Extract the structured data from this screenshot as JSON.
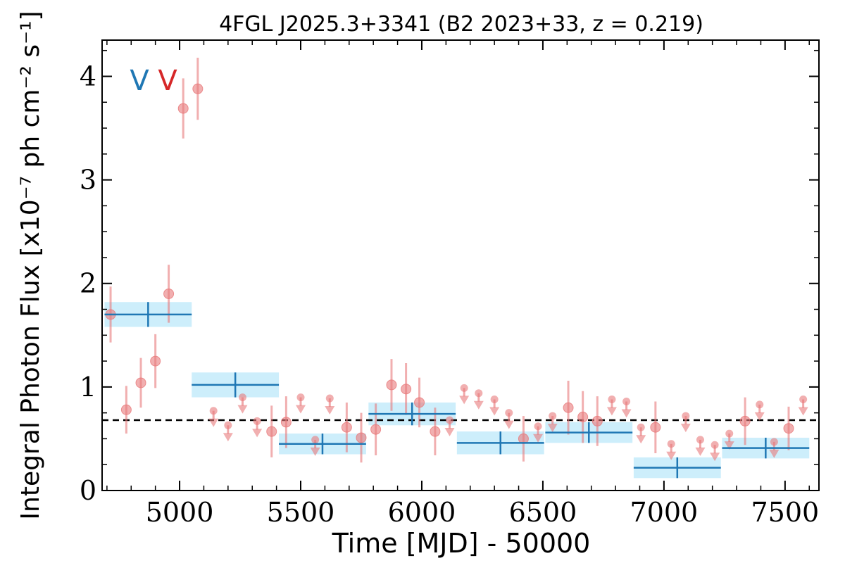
{
  "chart_data": {
    "type": "scatter",
    "title": "4FGL J2025.3+3341 (B2 2023+33, z = 0.219)",
    "xlabel": "Time [MJD] - 50000",
    "ylabel": "Integral Photon Flux [x10⁻⁷ ph cm⁻² s⁻¹]",
    "xlim": [
      4680,
      7640
    ],
    "ylim": [
      0,
      4.35
    ],
    "xticks": [
      5000,
      5500,
      6000,
      6500,
      7000,
      7500
    ],
    "yticks": [
      0,
      1,
      2,
      3,
      4
    ],
    "reference_line": {
      "y": 0.68,
      "style": "dashed",
      "color": "#000000"
    },
    "flags": [
      {
        "text": "V",
        "color": "#1f77b4"
      },
      {
        "text": "V",
        "color": "#d62728"
      }
    ],
    "colors": {
      "binned": "#1f77b4",
      "binned_band": "#cdeefb",
      "short": "#e8797b"
    },
    "binned": [
      {
        "x": 4870,
        "xerr": 180,
        "y": 1.7,
        "yerr": 0.12
      },
      {
        "x": 5230,
        "xerr": 180,
        "y": 1.02,
        "yerr": 0.12
      },
      {
        "x": 5590,
        "xerr": 180,
        "y": 0.45,
        "yerr": 0.1
      },
      {
        "x": 5960,
        "xerr": 180,
        "y": 0.74,
        "yerr": 0.11
      },
      {
        "x": 6325,
        "xerr": 180,
        "y": 0.46,
        "yerr": 0.11
      },
      {
        "x": 6690,
        "xerr": 180,
        "y": 0.56,
        "yerr": 0.1
      },
      {
        "x": 7055,
        "xerr": 180,
        "y": 0.22,
        "yerr": 0.1
      },
      {
        "x": 7420,
        "xerr": 180,
        "y": 0.41,
        "yerr": 0.1
      }
    ],
    "short_bins": [
      {
        "x": 4715,
        "y": 1.7,
        "yerr": 0.27,
        "ul": false
      },
      {
        "x": 4780,
        "y": 0.78,
        "yerr": 0.23,
        "ul": false
      },
      {
        "x": 4840,
        "y": 1.04,
        "yerr": 0.24,
        "ul": false
      },
      {
        "x": 4900,
        "y": 1.25,
        "yerr": 0.26,
        "ul": false
      },
      {
        "x": 4955,
        "y": 1.9,
        "yerr": 0.28,
        "ul": false
      },
      {
        "x": 5015,
        "y": 3.69,
        "yerr": 0.29,
        "ul": false
      },
      {
        "x": 5075,
        "y": 3.88,
        "yerr": 0.3,
        "ul": false
      },
      {
        "x": 5140,
        "y": 0.77,
        "ul": true
      },
      {
        "x": 5200,
        "y": 0.63,
        "ul": true
      },
      {
        "x": 5260,
        "y": 0.9,
        "ul": true
      },
      {
        "x": 5320,
        "y": 0.67,
        "ul": true
      },
      {
        "x": 5380,
        "y": 0.57,
        "yerr": 0.25,
        "ul": false
      },
      {
        "x": 5440,
        "y": 0.66,
        "yerr": 0.25,
        "ul": false
      },
      {
        "x": 5500,
        "y": 0.9,
        "ul": true
      },
      {
        "x": 5560,
        "y": 0.49,
        "ul": true
      },
      {
        "x": 5620,
        "y": 0.89,
        "ul": true
      },
      {
        "x": 5690,
        "y": 0.61,
        "yerr": 0.24,
        "ul": false
      },
      {
        "x": 5750,
        "y": 0.51,
        "yerr": 0.24,
        "ul": false
      },
      {
        "x": 5810,
        "y": 0.59,
        "yerr": 0.25,
        "ul": false
      },
      {
        "x": 5875,
        "y": 1.02,
        "yerr": 0.25,
        "ul": false
      },
      {
        "x": 5935,
        "y": 0.98,
        "yerr": 0.25,
        "ul": false
      },
      {
        "x": 5990,
        "y": 0.85,
        "yerr": 0.24,
        "ul": false
      },
      {
        "x": 6055,
        "y": 0.57,
        "yerr": 0.23,
        "ul": false
      },
      {
        "x": 6115,
        "y": 0.68,
        "ul": true
      },
      {
        "x": 6175,
        "y": 0.99,
        "ul": true
      },
      {
        "x": 6235,
        "y": 0.94,
        "ul": true
      },
      {
        "x": 6300,
        "y": 0.88,
        "ul": true
      },
      {
        "x": 6360,
        "y": 0.75,
        "ul": true
      },
      {
        "x": 6420,
        "y": 0.5,
        "yerr": 0.22,
        "ul": false
      },
      {
        "x": 6480,
        "y": 0.62,
        "ul": true
      },
      {
        "x": 6540,
        "y": 0.72,
        "ul": true
      },
      {
        "x": 6605,
        "y": 0.8,
        "yerr": 0.26,
        "ul": false
      },
      {
        "x": 6665,
        "y": 0.71,
        "yerr": 0.25,
        "ul": false
      },
      {
        "x": 6725,
        "y": 0.67,
        "yerr": 0.24,
        "ul": false
      },
      {
        "x": 6785,
        "y": 0.88,
        "ul": true
      },
      {
        "x": 6845,
        "y": 0.86,
        "ul": true
      },
      {
        "x": 6905,
        "y": 0.61,
        "ul": true
      },
      {
        "x": 6965,
        "y": 0.61,
        "yerr": 0.25,
        "ul": false
      },
      {
        "x": 7030,
        "y": 0.45,
        "ul": true
      },
      {
        "x": 7090,
        "y": 0.72,
        "ul": true
      },
      {
        "x": 7150,
        "y": 0.49,
        "ul": true
      },
      {
        "x": 7210,
        "y": 0.44,
        "ul": true
      },
      {
        "x": 7270,
        "y": 0.55,
        "ul": true
      },
      {
        "x": 7335,
        "y": 0.67,
        "yerr": 0.23,
        "ul": false
      },
      {
        "x": 7395,
        "y": 0.83,
        "ul": true
      },
      {
        "x": 7455,
        "y": 0.47,
        "ul": true
      },
      {
        "x": 7515,
        "y": 0.6,
        "yerr": 0.21,
        "ul": false
      },
      {
        "x": 7575,
        "y": 0.88,
        "ul": true
      }
    ]
  }
}
